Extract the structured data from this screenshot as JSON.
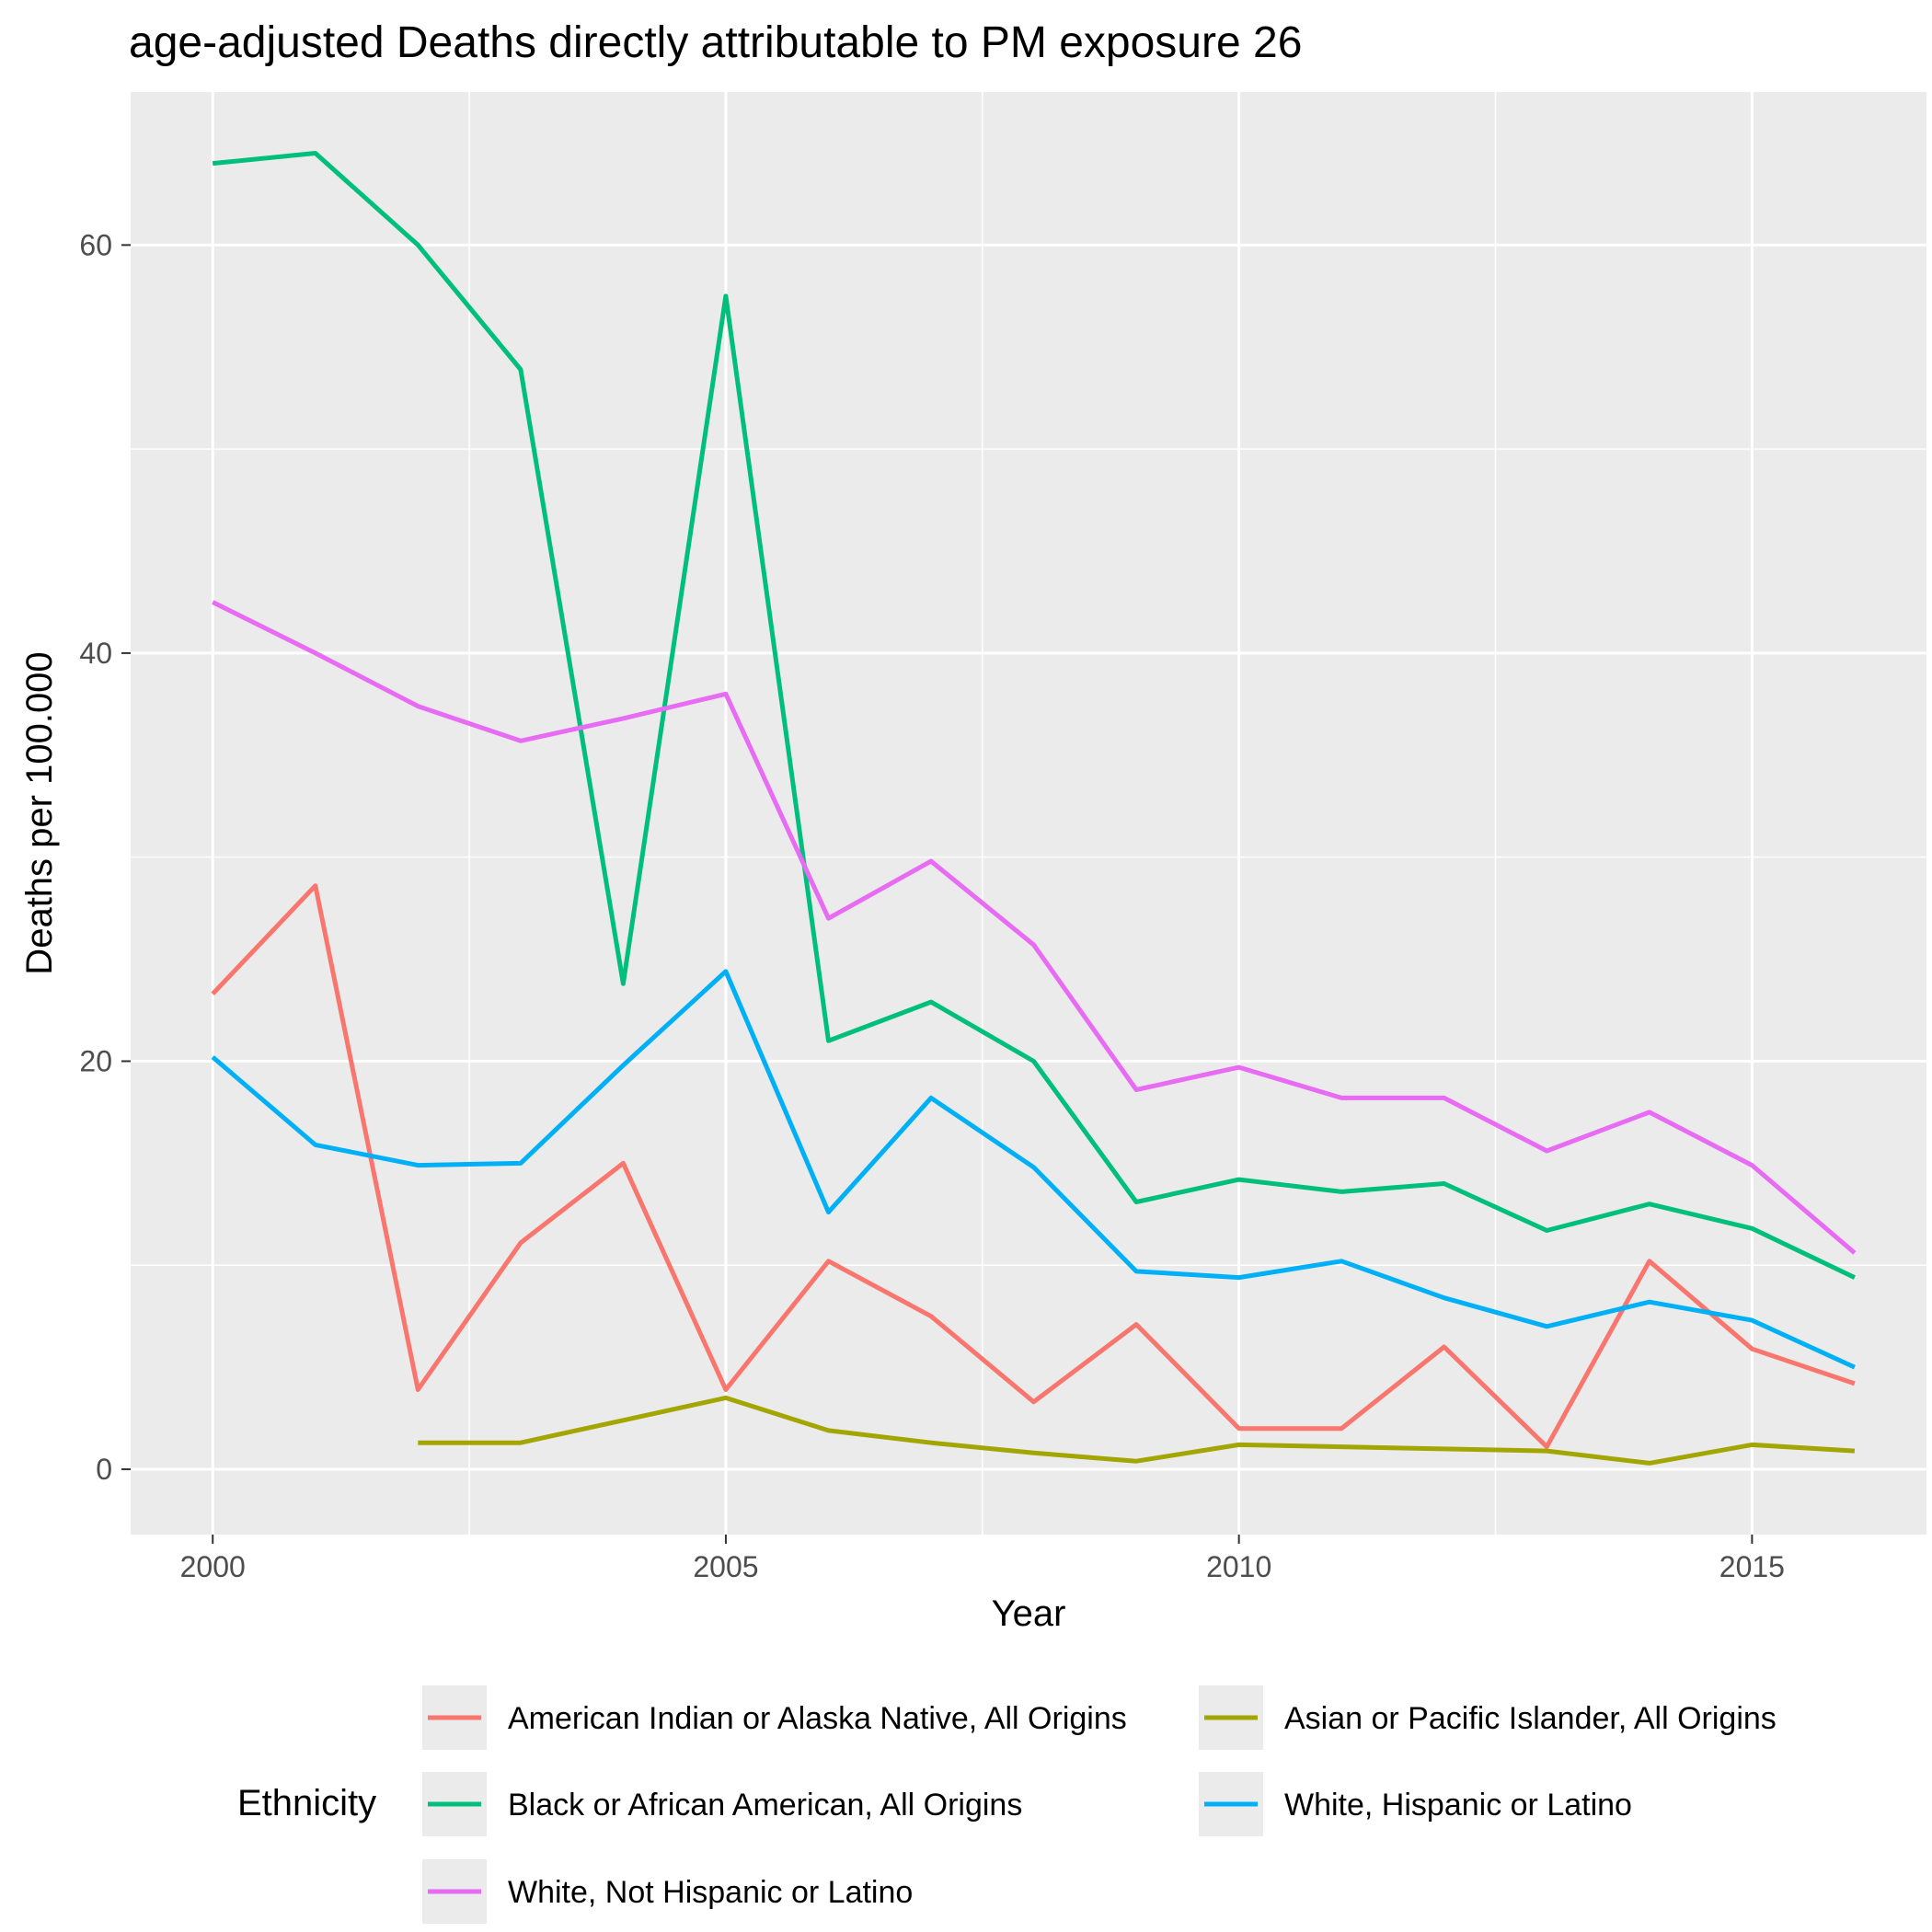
{
  "chart_data": {
    "type": "line",
    "title": "age-adjusted Deaths directly attributable to PM exposure 26",
    "xlabel": "Year",
    "ylabel": "Deaths per 100.000",
    "xlim": [
      1999.2,
      2016.7
    ],
    "ylim": [
      -3.2,
      67.5
    ],
    "x_ticks": [
      2000,
      2005,
      2010,
      2015
    ],
    "y_ticks": [
      0,
      20,
      40,
      60
    ],
    "x_minor": [
      2002.5,
      2007.5,
      2012.5
    ],
    "y_minor": [
      10,
      30,
      50
    ],
    "grid": true,
    "legend_title": "Ethnicity",
    "legend_position": "bottom",
    "series": [
      {
        "name": "American Indian or Alaska Native, All Origins",
        "color": "#F8766D",
        "points": [
          [
            2000,
            23.3
          ],
          [
            2001,
            28.6
          ],
          [
            2002,
            3.9
          ],
          [
            2003,
            11.1
          ],
          [
            2004,
            15.0
          ],
          [
            2005,
            3.9
          ],
          [
            2006,
            10.2
          ],
          [
            2007,
            7.5
          ],
          [
            2008,
            3.3
          ],
          [
            2009,
            7.1
          ],
          [
            2010,
            2.0
          ],
          [
            2011,
            2.0
          ],
          [
            2012,
            6.0
          ],
          [
            2013,
            1.1
          ],
          [
            2014,
            10.2
          ],
          [
            2015,
            5.9
          ],
          [
            2016,
            4.2
          ]
        ]
      },
      {
        "name": "Asian or Pacific Islander, All Origins",
        "color": "#A3A500",
        "points": [
          [
            2002,
            1.3
          ],
          [
            2003,
            1.3
          ],
          [
            2004,
            2.4
          ],
          [
            2005,
            3.5
          ],
          [
            2006,
            1.9
          ],
          [
            2007,
            1.3
          ],
          [
            2008,
            0.8
          ],
          [
            2009,
            0.4
          ],
          [
            2010,
            1.2
          ],
          [
            2011,
            1.1
          ],
          [
            2012,
            1.0
          ],
          [
            2013,
            0.9
          ],
          [
            2014,
            0.3
          ],
          [
            2015,
            1.2
          ],
          [
            2016,
            0.9
          ]
        ]
      },
      {
        "name": "Black or African American, All Origins",
        "color": "#00BF7D",
        "points": [
          [
            2000,
            64.0
          ],
          [
            2001,
            64.5
          ],
          [
            2002,
            60.0
          ],
          [
            2003,
            53.9
          ],
          [
            2004,
            23.8
          ],
          [
            2005,
            57.5
          ],
          [
            2006,
            21.0
          ],
          [
            2007,
            22.9
          ],
          [
            2008,
            20.0
          ],
          [
            2009,
            13.1
          ],
          [
            2010,
            14.2
          ],
          [
            2011,
            13.6
          ],
          [
            2012,
            14.0
          ],
          [
            2013,
            11.7
          ],
          [
            2014,
            13.0
          ],
          [
            2015,
            11.8
          ],
          [
            2016,
            9.4
          ]
        ]
      },
      {
        "name": "White, Hispanic or Latino",
        "color": "#00B0F6",
        "points": [
          [
            2000,
            20.2
          ],
          [
            2001,
            15.9
          ],
          [
            2002,
            14.9
          ],
          [
            2003,
            15.0
          ],
          [
            2004,
            19.8
          ],
          [
            2005,
            24.4
          ],
          [
            2006,
            12.6
          ],
          [
            2007,
            18.2
          ],
          [
            2008,
            14.8
          ],
          [
            2009,
            9.7
          ],
          [
            2010,
            9.4
          ],
          [
            2011,
            10.2
          ],
          [
            2012,
            8.4
          ],
          [
            2013,
            7.0
          ],
          [
            2014,
            8.2
          ],
          [
            2015,
            7.3
          ],
          [
            2016,
            5.0
          ]
        ]
      },
      {
        "name": "White, Not Hispanic or Latino",
        "color": "#E76BF3",
        "points": [
          [
            2000,
            42.5
          ],
          [
            2001,
            40.0
          ],
          [
            2002,
            37.4
          ],
          [
            2003,
            35.7
          ],
          [
            2004,
            36.8
          ],
          [
            2005,
            38.0
          ],
          [
            2006,
            27.0
          ],
          [
            2007,
            29.8
          ],
          [
            2008,
            25.7
          ],
          [
            2009,
            18.6
          ],
          [
            2010,
            19.7
          ],
          [
            2011,
            18.2
          ],
          [
            2012,
            18.2
          ],
          [
            2013,
            15.6
          ],
          [
            2014,
            17.5
          ],
          [
            2015,
            14.9
          ],
          [
            2016,
            10.6
          ]
        ]
      }
    ],
    "legend_rows": [
      [
        "American Indian or Alaska Native, All Origins",
        "Asian or Pacific Islander, All Origins"
      ],
      [
        "Black or African American, All Origins",
        "White, Hispanic or Latino"
      ],
      [
        "White, Not Hispanic or Latino"
      ]
    ]
  }
}
